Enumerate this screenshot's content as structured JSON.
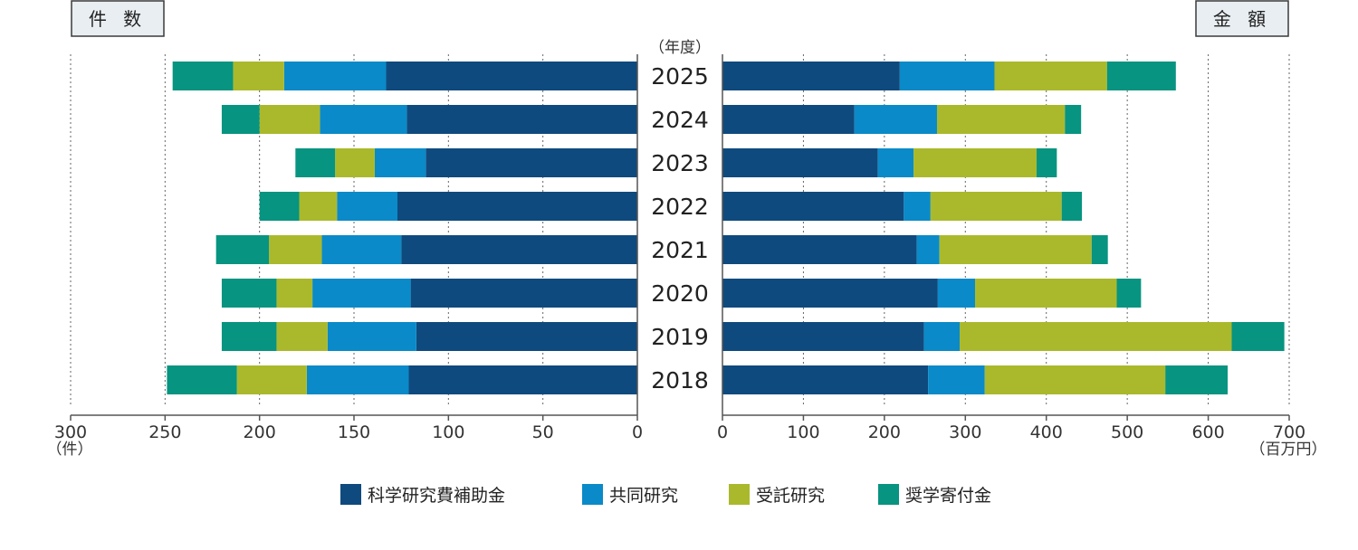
{
  "chart_data": {
    "type": "bar",
    "orientation": "horizontal-diverging",
    "categories": [
      "2025",
      "2024",
      "2023",
      "2022",
      "2021",
      "2020",
      "2019",
      "2018"
    ],
    "category_header": "（年度）",
    "left_panel": {
      "title": "件 数",
      "unit": "（件）",
      "xlim": [
        0,
        300
      ],
      "ticks": [
        300,
        250,
        200,
        150,
        100,
        50,
        0
      ],
      "series": [
        {
          "name": "科学研究費補助金",
          "values": [
            133,
            122,
            112,
            127,
            125,
            120,
            117,
            121
          ]
        },
        {
          "name": "共同研究",
          "values": [
            54,
            46,
            27,
            32,
            42,
            52,
            47,
            54
          ]
        },
        {
          "name": "受託研究",
          "values": [
            27,
            32,
            21,
            20,
            28,
            19,
            27,
            37
          ]
        },
        {
          "name": "奨学寄付金",
          "values": [
            32,
            20,
            21,
            21,
            28,
            29,
            29,
            37
          ]
        }
      ]
    },
    "right_panel": {
      "title": "金 額",
      "unit": "（百万円）",
      "xlim": [
        0,
        700
      ],
      "ticks": [
        0,
        100,
        200,
        300,
        400,
        500,
        600,
        700
      ],
      "series": [
        {
          "name": "科学研究費補助金",
          "values": [
            219,
            163,
            192,
            224,
            240,
            266,
            249,
            254
          ]
        },
        {
          "name": "共同研究",
          "values": [
            117,
            102,
            44,
            33,
            28,
            46,
            44,
            70
          ]
        },
        {
          "name": "受託研究",
          "values": [
            139,
            158,
            152,
            162,
            188,
            175,
            336,
            223
          ]
        },
        {
          "name": "奨学寄付金",
          "values": [
            85,
            20,
            25,
            25,
            20,
            30,
            65,
            77
          ]
        }
      ]
    },
    "legend": {
      "placement": "bottom",
      "items": [
        "科学研究費補助金",
        "共同研究",
        "受託研究",
        "奨学寄付金"
      ]
    },
    "colors": [
      "#0f4a7e",
      "#0a8ac8",
      "#aab92b",
      "#079480"
    ],
    "grid": true
  }
}
